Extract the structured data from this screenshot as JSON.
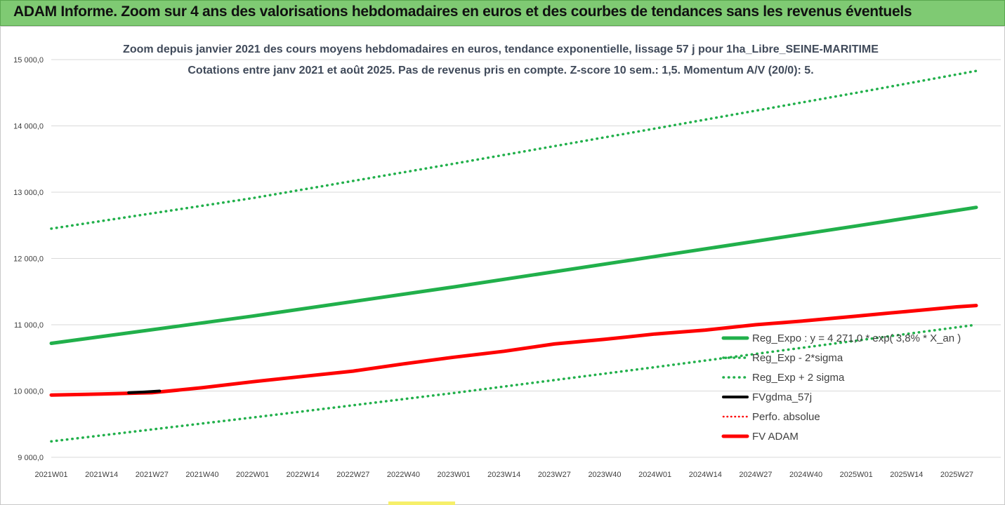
{
  "header": {
    "title": "ADAM Informe. Zoom sur 4 ans des valorisations hebdomadaires en euros et des courbes de tendances sans les revenus éventuels"
  },
  "colors": {
    "banner": "#7fca73",
    "reg_expo": "#21b04b",
    "fv_adam": "#ff0000",
    "fvgdma": "#000000",
    "perfo": "#ff0000"
  },
  "chart_data": {
    "type": "line",
    "title_lines": [
      "Zoom depuis janvier 2021 des cours moyens hebdomadaires en euros, tendance exponentielle, lissage 57 j pour 1ha_Libre_SEINE-MARITIME",
      "Cotations entre janv 2021 et août 2025.  Pas de revenus pris en compte. Z-score 10 sem.: 1,5. Momentum A/V (20/0): 5."
    ],
    "ylim": [
      9000,
      15000
    ],
    "y_ticks": [
      "9 000,0",
      "10 000,0",
      "11 000,0",
      "12 000,0",
      "13 000,0",
      "14 000,0",
      "15 000,0"
    ],
    "y_tick_values": [
      9000,
      10000,
      11000,
      12000,
      13000,
      14000,
      15000
    ],
    "x_ticks": [
      "2021W01",
      "2021W14",
      "2021W27",
      "2021W40",
      "2022W01",
      "2022W14",
      "2022W27",
      "2022W40",
      "2023W01",
      "2023W14",
      "2023W27",
      "2023W40",
      "2024W01",
      "2024W14",
      "2024W27",
      "2024W40",
      "2025W01",
      "2025W14",
      "2025W27"
    ],
    "x_tick_weeks": [
      0,
      13,
      26,
      39,
      52,
      65,
      78,
      91,
      104,
      117,
      130,
      143,
      156,
      169,
      182,
      195,
      208,
      221,
      234
    ],
    "week_range": [
      0,
      239
    ],
    "grid": "horizontal",
    "legend_position": "right",
    "series": [
      {
        "name": "Reg_Expo : y = 4 271,0 * exp( 3,8% * X_an )",
        "style": "solid-thick",
        "color": "#21b04b",
        "x": [
          0,
          52,
          104,
          156,
          208,
          239
        ],
        "values": [
          10720,
          11130,
          11570,
          12030,
          12490,
          12770
        ]
      },
      {
        "name": "Reg_Exp - 2*sigma",
        "style": "dotted",
        "color": "#21b04b",
        "x": [
          0,
          52,
          104,
          156,
          208,
          239
        ],
        "values": [
          9240,
          9600,
          9970,
          10360,
          10760,
          11000
        ]
      },
      {
        "name": "Reg_Exp + 2 sigma",
        "style": "dotted",
        "color": "#21b04b",
        "x": [
          0,
          52,
          104,
          156,
          208,
          239
        ],
        "values": [
          12450,
          12910,
          13430,
          13960,
          14500,
          14830
        ]
      },
      {
        "name": "FVgdma_57j",
        "style": "solid",
        "color": "#000000",
        "x": [
          20,
          24,
          28
        ],
        "values": [
          9975,
          9985,
          10000
        ]
      },
      {
        "name": "Perfo. absolue",
        "style": "dotted-red",
        "color": "#ff0000",
        "x": [],
        "values": []
      },
      {
        "name": "FV ADAM",
        "style": "solid-thick",
        "color": "#ff0000",
        "x": [
          0,
          13,
          26,
          39,
          52,
          65,
          78,
          91,
          104,
          117,
          130,
          143,
          156,
          169,
          182,
          195,
          208,
          221,
          234,
          239
        ],
        "values": [
          9940,
          9955,
          9975,
          10050,
          10140,
          10220,
          10300,
          10410,
          10510,
          10600,
          10710,
          10780,
          10860,
          10920,
          11000,
          11060,
          11130,
          11200,
          11270,
          11290
        ]
      }
    ]
  }
}
